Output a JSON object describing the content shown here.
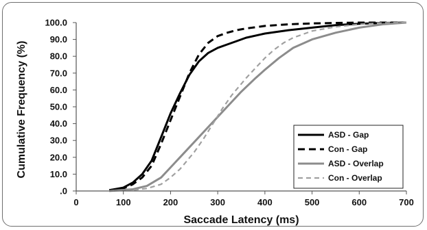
{
  "chart_data": {
    "type": "line",
    "title": "",
    "xlabel": "Saccade Latency (ms)",
    "ylabel": "Cumulative Frequency (%)",
    "xlim": [
      0,
      700
    ],
    "ylim": [
      0,
      100
    ],
    "x_ticks": [
      0,
      100,
      200,
      300,
      400,
      500,
      600,
      700
    ],
    "x_tick_labels": [
      "0",
      "100",
      "200",
      "300",
      "400",
      "500",
      "600",
      "700"
    ],
    "y_ticks": [
      0,
      10,
      20,
      30,
      40,
      50,
      60,
      70,
      80,
      90,
      100
    ],
    "y_tick_labels": [
      ".0",
      "10.0",
      "20.0",
      "30.0",
      "40.0",
      "50.0",
      "60.0",
      "70.0",
      "80.0",
      "90.0",
      "100.0"
    ],
    "grid": false,
    "legend_position": "bottom-right",
    "series": [
      {
        "name": "ASD - Gap",
        "color": "#000000",
        "style": "solid",
        "points": [
          [
            70,
            0.5
          ],
          [
            100,
            2
          ],
          [
            120,
            5
          ],
          [
            140,
            10
          ],
          [
            160,
            18
          ],
          [
            180,
            32
          ],
          [
            200,
            46
          ],
          [
            220,
            58
          ],
          [
            240,
            69
          ],
          [
            260,
            77
          ],
          [
            280,
            82
          ],
          [
            300,
            85
          ],
          [
            320,
            87
          ],
          [
            340,
            89
          ],
          [
            360,
            91
          ],
          [
            400,
            93.5
          ],
          [
            450,
            95.5
          ],
          [
            500,
            97
          ],
          [
            550,
            98.5
          ],
          [
            600,
            99.3
          ],
          [
            650,
            99.8
          ],
          [
            700,
            100
          ]
        ]
      },
      {
        "name": "Con - Gap",
        "color": "#000000",
        "style": "dashed",
        "points": [
          [
            70,
            0.5
          ],
          [
            100,
            1.5
          ],
          [
            120,
            4
          ],
          [
            140,
            8
          ],
          [
            160,
            15
          ],
          [
            180,
            28
          ],
          [
            200,
            42
          ],
          [
            220,
            56
          ],
          [
            240,
            70
          ],
          [
            260,
            81
          ],
          [
            280,
            88
          ],
          [
            300,
            92
          ],
          [
            320,
            94
          ],
          [
            340,
            95.5
          ],
          [
            360,
            96.5
          ],
          [
            400,
            98
          ],
          [
            450,
            99
          ],
          [
            500,
            99.5
          ],
          [
            550,
            99.8
          ],
          [
            600,
            100
          ],
          [
            700,
            100
          ]
        ]
      },
      {
        "name": "ASD - Overlap",
        "color": "#8c8c8c",
        "style": "solid",
        "points": [
          [
            70,
            0
          ],
          [
            120,
            1
          ],
          [
            150,
            3
          ],
          [
            180,
            8
          ],
          [
            200,
            14
          ],
          [
            220,
            20
          ],
          [
            250,
            29
          ],
          [
            280,
            38
          ],
          [
            300,
            44
          ],
          [
            320,
            50
          ],
          [
            350,
            59
          ],
          [
            380,
            67
          ],
          [
            400,
            72
          ],
          [
            430,
            79
          ],
          [
            460,
            85
          ],
          [
            500,
            90
          ],
          [
            550,
            94
          ],
          [
            600,
            97
          ],
          [
            650,
            99
          ],
          [
            700,
            100
          ]
        ]
      },
      {
        "name": "Con - Overlap",
        "color": "#a0a0a0",
        "style": "dashed",
        "points": [
          [
            70,
            0
          ],
          [
            120,
            0.5
          ],
          [
            150,
            1.5
          ],
          [
            180,
            4
          ],
          [
            200,
            8
          ],
          [
            220,
            13
          ],
          [
            250,
            23
          ],
          [
            270,
            31
          ],
          [
            290,
            40
          ],
          [
            310,
            49
          ],
          [
            330,
            57
          ],
          [
            360,
            67
          ],
          [
            380,
            73
          ],
          [
            400,
            79
          ],
          [
            420,
            84
          ],
          [
            440,
            88
          ],
          [
            460,
            91
          ],
          [
            500,
            95
          ],
          [
            550,
            97.5
          ],
          [
            600,
            99
          ],
          [
            650,
            99.8
          ],
          [
            700,
            100
          ]
        ]
      }
    ]
  }
}
